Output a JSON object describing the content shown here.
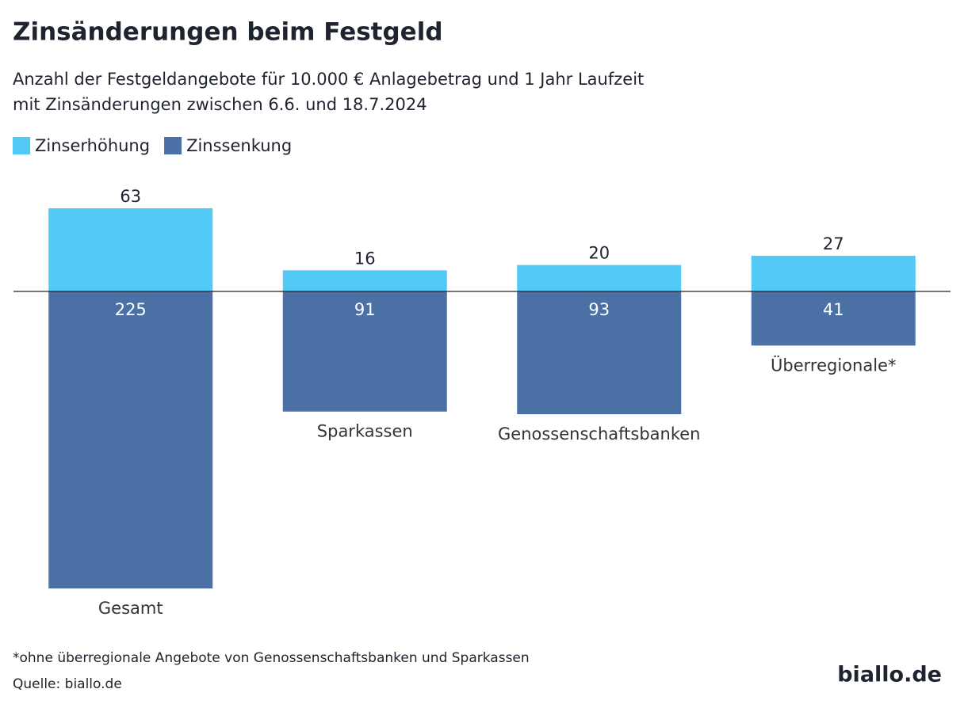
{
  "chart_data": {
    "type": "diverging_bar",
    "title": "Zinsänderungen beim Festgeld",
    "subtitle": [
      "Anzahl der Festgeldangebote für 10.000 € Anlagebetrag und 1 Jahr Laufzeit",
      "mit Zinsänderungen zwischen 6.6. und 18.7.2024"
    ],
    "categories": [
      "Gesamt",
      "Sparkassen",
      "Genossenschaftsbanken",
      "Überregionale*"
    ],
    "series": [
      {
        "name": "Zinserhöhung",
        "color": "#52c8f5",
        "values": [
          63,
          16,
          20,
          27
        ]
      },
      {
        "name": "Zinssenkung",
        "color": "#4a70a6",
        "values": [
          225,
          91,
          93,
          41
        ]
      }
    ],
    "note": "*ohne überregionale Angebote von Genossenschaftsbanken und Sparkassen",
    "source": "Quelle: biallo.de",
    "logo": "biallo.de"
  }
}
